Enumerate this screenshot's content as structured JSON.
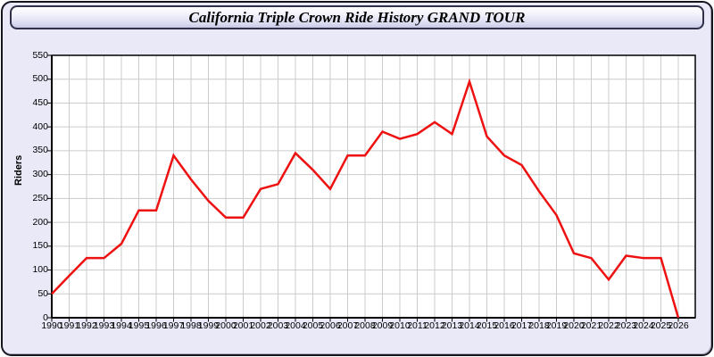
{
  "window": {
    "title": "California Triple Crown Ride History GRAND TOUR"
  },
  "colors": {
    "card_background": "#e9e9f8",
    "plot_background": "#ffffff",
    "gridline": "#cccccc",
    "axis": "#000000",
    "line": "#ee1111"
  },
  "chart_data": {
    "type": "line",
    "title": "California Triple Crown Ride History GRAND TOUR",
    "xlabel": "",
    "ylabel": "Riders",
    "ylim": [
      0,
      550
    ],
    "yticks": [
      0,
      50,
      100,
      150,
      200,
      250,
      300,
      350,
      400,
      450,
      500,
      550
    ],
    "grid": true,
    "legend": false,
    "x": [
      1990,
      1991,
      1992,
      1993,
      1994,
      1995,
      1996,
      1997,
      1998,
      1999,
      2000,
      2001,
      2002,
      2003,
      2004,
      2005,
      2006,
      2007,
      2008,
      2009,
      2010,
      2011,
      2012,
      2013,
      2014,
      2015,
      2016,
      2017,
      2018,
      2019,
      2020,
      2021,
      2022,
      2023,
      2024,
      2025,
      2026
    ],
    "series": [
      {
        "name": "Riders",
        "color": "#ee1111",
        "values": [
          50,
          88,
          125,
          125,
          155,
          225,
          225,
          340,
          290,
          245,
          210,
          210,
          270,
          280,
          345,
          310,
          270,
          340,
          340,
          390,
          375,
          385,
          410,
          385,
          495,
          380,
          340,
          320,
          265,
          215,
          135,
          125,
          80,
          130,
          125,
          125,
          0
        ]
      }
    ]
  }
}
